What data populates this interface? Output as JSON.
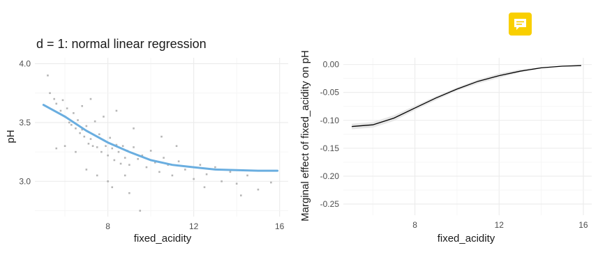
{
  "comment_icon": {
    "name": "comment-icon",
    "color": "#f9cf00"
  },
  "chart_data": [
    {
      "type": "scatter",
      "title": "d = 1: normal linear regression",
      "xlabel": "fixed_acidity",
      "ylabel": "pH",
      "xlim": [
        4.6,
        16.4
      ],
      "ylim": [
        2.7,
        4.05
      ],
      "x_ticks": [
        8,
        12,
        16
      ],
      "y_ticks": [
        3.0,
        3.5,
        4.0
      ],
      "y_tick_labels": [
        "3.0",
        "3.5",
        "4.0"
      ],
      "grid": true,
      "point_color": "#9e9e9e",
      "points": [
        [
          5.2,
          3.9
        ],
        [
          5.3,
          3.75
        ],
        [
          5.5,
          3.7
        ],
        [
          5.6,
          3.66
        ],
        [
          5.8,
          3.6
        ],
        [
          5.9,
          3.69
        ],
        [
          6.0,
          3.55
        ],
        [
          6.1,
          3.62
        ],
        [
          6.2,
          3.5
        ],
        [
          6.3,
          3.48
        ],
        [
          6.4,
          3.58
        ],
        [
          6.5,
          3.45
        ],
        [
          6.6,
          3.52
        ],
        [
          6.7,
          3.41
        ],
        [
          6.8,
          3.44
        ],
        [
          6.9,
          3.38
        ],
        [
          7.0,
          3.47
        ],
        [
          7.1,
          3.32
        ],
        [
          7.2,
          3.36
        ],
        [
          7.3,
          3.3
        ],
        [
          7.4,
          3.51
        ],
        [
          7.5,
          3.29
        ],
        [
          7.6,
          3.4
        ],
        [
          7.7,
          3.25
        ],
        [
          7.8,
          3.35
        ],
        [
          7.9,
          3.3
        ],
        [
          8.0,
          3.22
        ],
        [
          8.1,
          3.37
        ],
        [
          8.2,
          3.28
        ],
        [
          8.3,
          3.18
        ],
        [
          8.4,
          3.31
        ],
        [
          8.5,
          3.25
        ],
        [
          8.6,
          3.15
        ],
        [
          8.7,
          3.3
        ],
        [
          8.8,
          3.2
        ],
        [
          8.9,
          3.26
        ],
        [
          9.0,
          3.14
        ],
        [
          9.2,
          3.29
        ],
        [
          9.4,
          3.19
        ],
        [
          9.6,
          3.22
        ],
        [
          9.8,
          3.12
        ],
        [
          10.0,
          3.26
        ],
        [
          10.2,
          3.16
        ],
        [
          10.4,
          3.08
        ],
        [
          10.6,
          3.2
        ],
        [
          10.8,
          3.14
        ],
        [
          11.0,
          3.05
        ],
        [
          11.3,
          3.17
        ],
        [
          11.6,
          3.1
        ],
        [
          12.0,
          3.02
        ],
        [
          12.3,
          3.14
        ],
        [
          12.6,
          3.06
        ],
        [
          13.0,
          3.12
        ],
        [
          13.3,
          3.0
        ],
        [
          13.7,
          3.08
        ],
        [
          14.0,
          2.98
        ],
        [
          14.5,
          3.05
        ],
        [
          15.0,
          2.93
        ],
        [
          15.6,
          2.99
        ],
        [
          7.0,
          3.1
        ],
        [
          7.5,
          3.05
        ],
        [
          8.0,
          3.0
        ],
        [
          8.2,
          2.95
        ],
        [
          9.0,
          2.9
        ],
        [
          9.5,
          2.75
        ],
        [
          6.5,
          3.25
        ],
        [
          6.0,
          3.3
        ],
        [
          5.6,
          3.28
        ],
        [
          7.8,
          3.55
        ],
        [
          8.4,
          3.6
        ],
        [
          9.2,
          3.45
        ],
        [
          10.5,
          3.38
        ],
        [
          11.2,
          3.3
        ],
        [
          12.5,
          2.95
        ],
        [
          14.2,
          2.88
        ],
        [
          7.2,
          3.7
        ],
        [
          6.8,
          3.64
        ],
        [
          8.8,
          3.05
        ]
      ],
      "curve_color": "#6aaee0",
      "curve": {
        "x": [
          5.0,
          6.0,
          7.0,
          8.0,
          9.0,
          10.0,
          11.0,
          12.0,
          13.0,
          14.0,
          15.0,
          15.9
        ],
        "y": [
          3.65,
          3.55,
          3.43,
          3.33,
          3.25,
          3.18,
          3.14,
          3.12,
          3.1,
          3.095,
          3.09,
          3.09
        ]
      }
    },
    {
      "type": "line",
      "title": "",
      "xlabel": "fixed_acidity",
      "ylabel": "Marginal effect of fixed_acidity on pH",
      "xlim": [
        4.6,
        16.4
      ],
      "ylim": [
        -0.27,
        0.012
      ],
      "x_ticks": [
        8,
        12,
        16
      ],
      "y_ticks": [
        0.0,
        -0.05,
        -0.1,
        -0.15,
        -0.2,
        -0.25
      ],
      "y_tick_labels": [
        "0.00",
        "-0.05",
        "-0.10",
        "-0.15",
        "-0.20",
        "-0.25"
      ],
      "grid": true,
      "line_color": "#000000",
      "band_color": "#e6e6e6",
      "series": [
        {
          "x": [
            5.0,
            6.0,
            7.0,
            8.0,
            9.0,
            10.0,
            11.0,
            12.0,
            13.0,
            14.0,
            15.0,
            15.9
          ],
          "y": [
            -0.111,
            -0.108,
            -0.096,
            -0.078,
            -0.06,
            -0.044,
            -0.03,
            -0.02,
            -0.012,
            -0.006,
            -0.003,
            -0.002
          ],
          "lower": [
            -0.116,
            -0.113,
            -0.101,
            -0.082,
            -0.064,
            -0.047,
            -0.034,
            -0.024,
            -0.014,
            -0.007,
            -0.003,
            -0.002
          ],
          "upper": [
            -0.106,
            -0.103,
            -0.091,
            -0.074,
            -0.057,
            -0.041,
            -0.027,
            -0.016,
            -0.009,
            -0.005,
            -0.003,
            -0.002
          ]
        }
      ]
    }
  ]
}
